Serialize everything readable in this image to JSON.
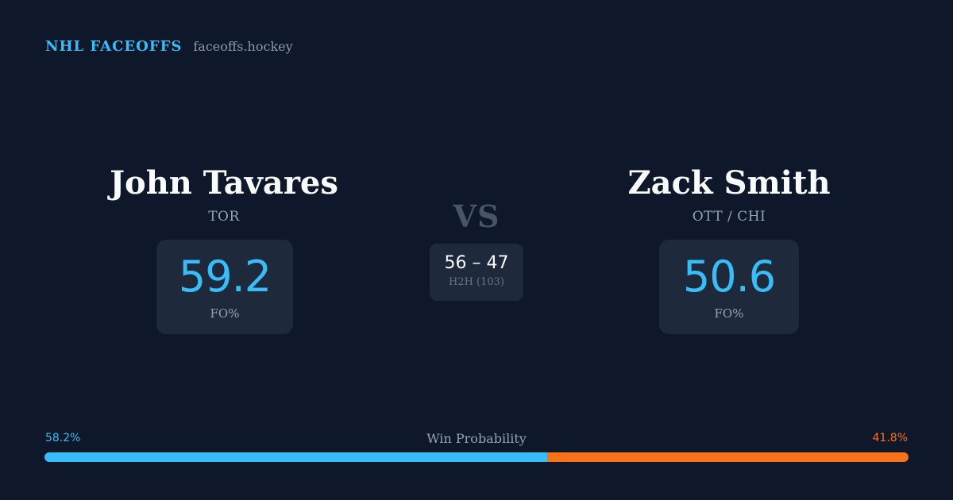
{
  "brand": {
    "name": "NHL FACEOFFS",
    "site": "faceoffs.hockey"
  },
  "player_left": {
    "name": "John Tavares",
    "team": "TOR",
    "stat_value": "59.2",
    "stat_label": "FO%"
  },
  "player_right": {
    "name": "Zack Smith",
    "team": "OTT / CHI",
    "stat_value": "50.6",
    "stat_label": "FO%"
  },
  "versus": {
    "label": "VS",
    "score": "56 – 47",
    "h2h_label": "H2H (103)"
  },
  "win_probability": {
    "title": "Win Probability",
    "left_label": "58.2%",
    "right_label": "41.8%",
    "left_fraction": 0.582,
    "right_fraction": 0.418
  },
  "colors": {
    "background": "#0f172a",
    "card": "#1e293b",
    "accent_blue": "#38bdf8",
    "accent_orange": "#f97316"
  }
}
